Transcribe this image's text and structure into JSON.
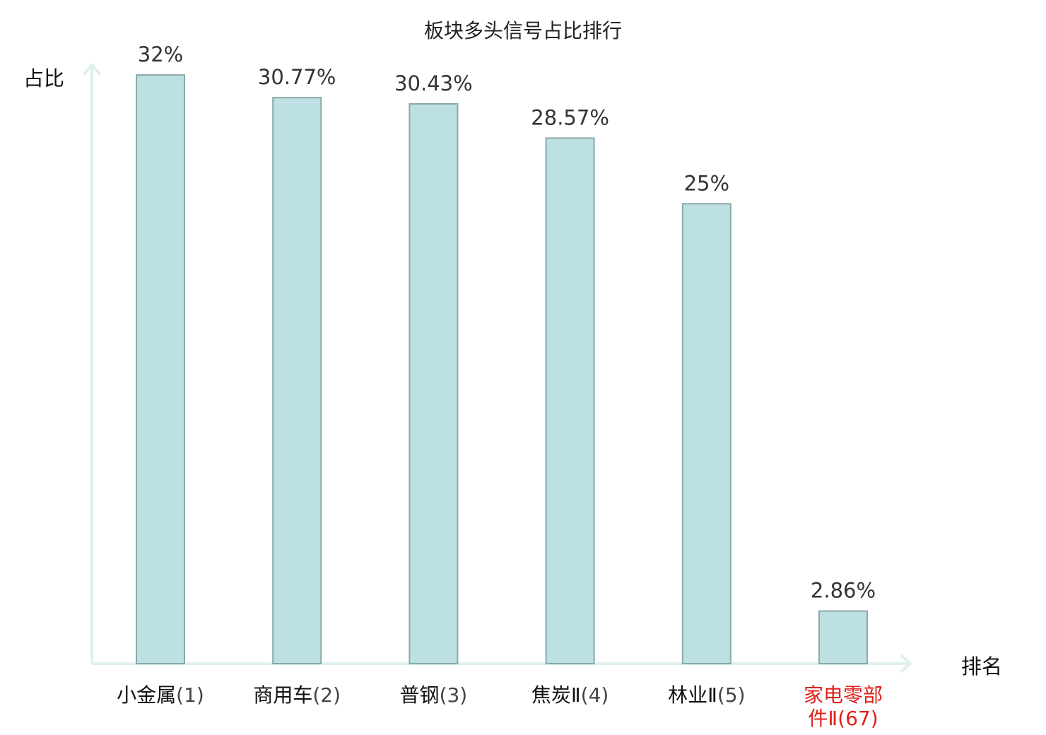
{
  "chart_data": {
    "type": "bar",
    "title": "板块多头信号占比排行",
    "ylabel": "占比",
    "xlabel": "排名",
    "ylim": [
      0,
      35
    ],
    "grid": false,
    "categories": [
      {
        "name": "小金属",
        "rank": "(1)",
        "highlight": false
      },
      {
        "name": "商用车",
        "rank": "(2)",
        "highlight": false
      },
      {
        "name": "普钢",
        "rank": "(3)",
        "highlight": false
      },
      {
        "name": "焦炭Ⅱ",
        "rank": "(4)",
        "highlight": false
      },
      {
        "name": "林业Ⅱ",
        "rank": "(5)",
        "highlight": false
      },
      {
        "name": "家电零部件Ⅱ",
        "rank": "(67)",
        "highlight": true,
        "wrap_lines": [
          "家电零部",
          "件Ⅱ"
        ]
      }
    ],
    "values": [
      32,
      30.77,
      30.43,
      28.57,
      25,
      2.86
    ],
    "value_labels": [
      "32%",
      "30.77%",
      "30.43%",
      "28.57%",
      "25%",
      "2.86%"
    ],
    "colors": {
      "bar_fill": "#bde0e3",
      "bar_stroke": "#8aa8ab",
      "axis": "#dff1ef",
      "highlight_text": "#e0201a"
    }
  }
}
